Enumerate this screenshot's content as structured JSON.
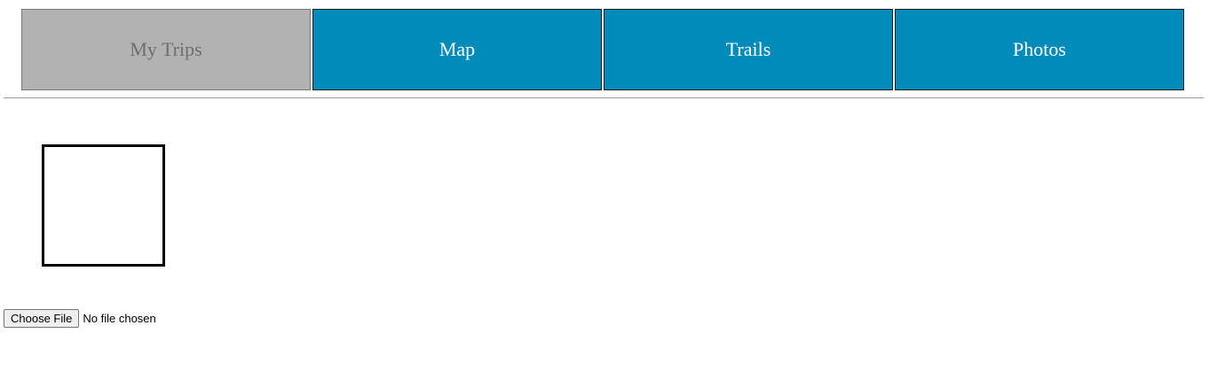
{
  "nav": {
    "tabs": [
      {
        "label": "My Trips",
        "active": true
      },
      {
        "label": "Map",
        "active": false
      },
      {
        "label": "Trails",
        "active": false
      },
      {
        "label": "Photos",
        "active": false
      }
    ],
    "colors": {
      "active_bg": "#b2b2b2",
      "active_text": "#6e6e6e",
      "tab_bg": "#008bbb",
      "tab_text": "#ffffff"
    }
  },
  "upload": {
    "button_label": "Choose File",
    "status_text": "No file chosen"
  }
}
